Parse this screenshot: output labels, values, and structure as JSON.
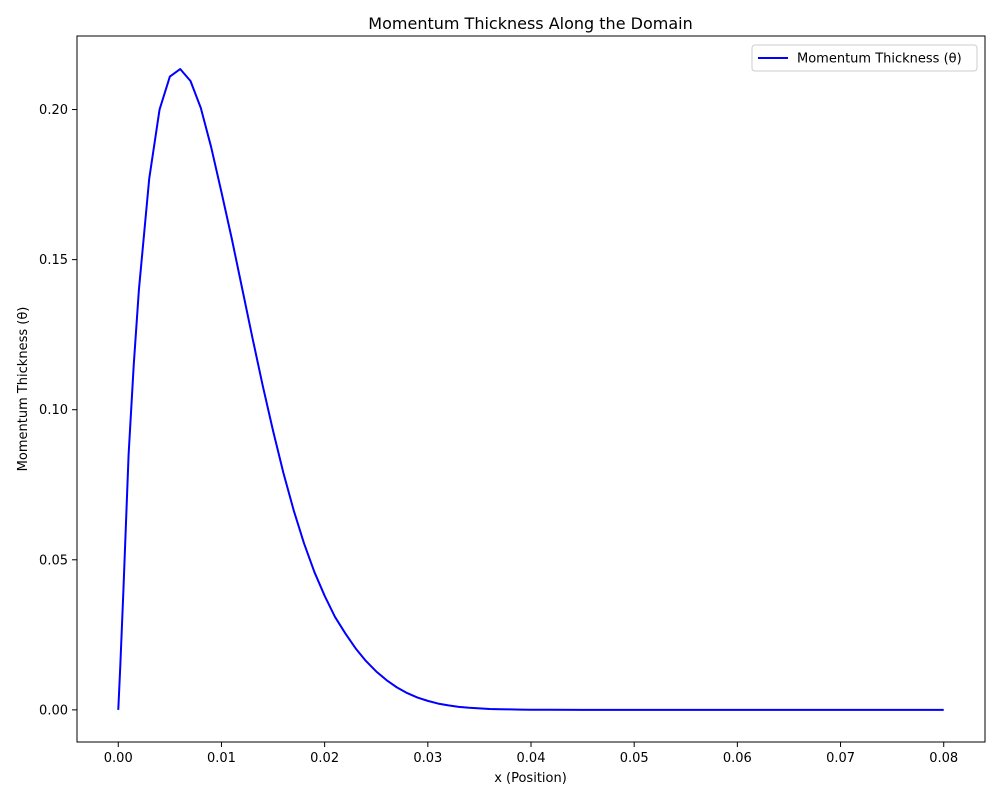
{
  "chart_data": {
    "type": "line",
    "title": "Momentum Thickness Along the Domain",
    "xlabel": "x (Position)",
    "ylabel": "Momentum Thickness (θ)",
    "xlim": [
      -0.004,
      0.084
    ],
    "ylim": [
      -0.0107,
      0.2245
    ],
    "x_ticks": [
      0.0,
      0.01,
      0.02,
      0.03,
      0.04,
      0.05,
      0.06,
      0.07,
      0.08
    ],
    "x_tick_labels": [
      "0.00",
      "0.01",
      "0.02",
      "0.03",
      "0.04",
      "0.05",
      "0.06",
      "0.07",
      "0.08"
    ],
    "y_ticks": [
      0.0,
      0.05,
      0.1,
      0.15,
      0.2
    ],
    "y_tick_labels": [
      "0.00",
      "0.05",
      "0.10",
      "0.15",
      "0.20"
    ],
    "grid": false,
    "legend": "upper right",
    "series": [
      {
        "name": "Momentum Thickness (θ)",
        "color": "#0000ff",
        "x": [
          0.0,
          0.0002,
          0.0005,
          0.001,
          0.0015,
          0.002,
          0.003,
          0.004,
          0.005,
          0.006,
          0.007,
          0.008,
          0.009,
          0.01,
          0.011,
          0.012,
          0.013,
          0.014,
          0.015,
          0.016,
          0.017,
          0.018,
          0.019,
          0.02,
          0.021,
          0.022,
          0.023,
          0.024,
          0.025,
          0.026,
          0.027,
          0.028,
          0.029,
          0.03,
          0.031,
          0.032,
          0.033,
          0.034,
          0.035,
          0.036,
          0.037,
          0.038,
          0.039,
          0.04,
          0.042,
          0.045,
          0.05,
          0.055,
          0.06,
          0.065,
          0.07,
          0.075,
          0.08
        ],
        "y": [
          0.0,
          0.015,
          0.04,
          0.085,
          0.115,
          0.14,
          0.177,
          0.2,
          0.211,
          0.2135,
          0.2095,
          0.2005,
          0.1875,
          0.1725,
          0.157,
          0.1405,
          0.124,
          0.108,
          0.093,
          0.079,
          0.0665,
          0.0555,
          0.046,
          0.038,
          0.031,
          0.0255,
          0.0205,
          0.0163,
          0.0128,
          0.0099,
          0.0075,
          0.0056,
          0.0041,
          0.003,
          0.0021,
          0.0015,
          0.001,
          0.0007,
          0.0005,
          0.0003,
          0.0002,
          0.00015,
          0.0001,
          6e-05,
          3e-05,
          1e-05,
          0.0,
          0.0,
          0.0,
          0.0,
          0.0,
          0.0,
          0.0
        ]
      }
    ]
  }
}
